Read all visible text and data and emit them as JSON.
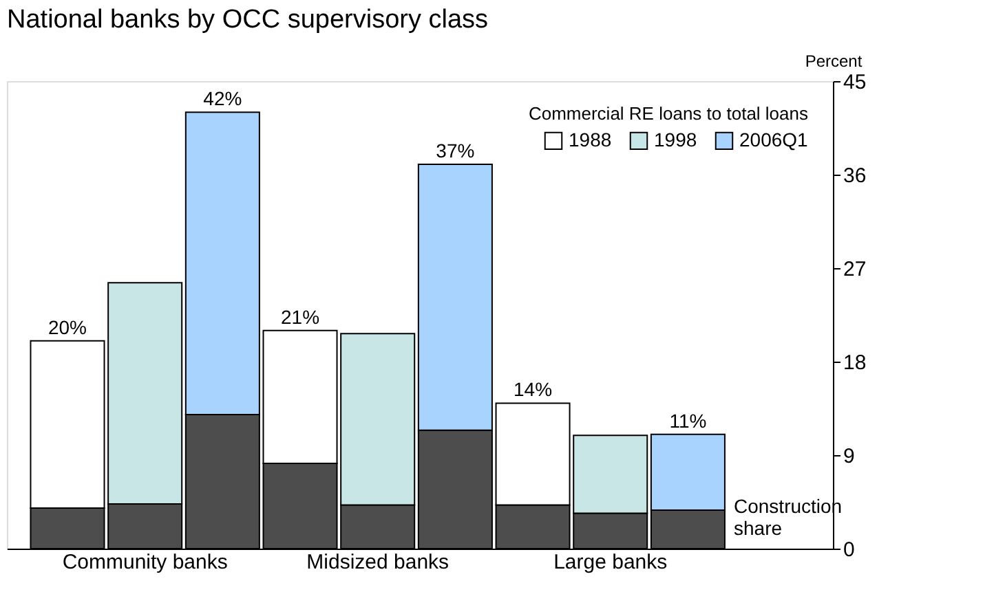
{
  "chart_data": {
    "type": "bar",
    "title": "National banks by OCC supervisory class",
    "ylabel": "Percent",
    "legend_title": "Commercial RE loans to total loans",
    "categories": [
      null,
      "Community banks",
      null,
      null,
      "Midsized banks",
      null,
      null,
      "Large banks",
      null
    ],
    "stacked": true,
    "ylim": [
      0,
      45
    ],
    "yticks": [
      0,
      9,
      18,
      27,
      36,
      45
    ],
    "grid": false,
    "legend": "top right",
    "series": [
      {
        "color": "#4d4d4d",
        "values": [
          3.9,
          4.3,
          12.9,
          8.2,
          4.2,
          11.4,
          4.2,
          3.4,
          3.7
        ]
      },
      {
        "name": "1988",
        "color": "#ffffff",
        "values": [
          16.1,
          null,
          null,
          12.8,
          null,
          null,
          9.8,
          null,
          null
        ]
      },
      {
        "name": "1998",
        "color": "#c9e6e6",
        "values": [
          null,
          21.3,
          null,
          null,
          16.5,
          null,
          null,
          7.5,
          null
        ]
      },
      {
        "name": "2006Q1",
        "color": "#a9d3ff",
        "values": [
          null,
          null,
          29.1,
          null,
          null,
          25.6,
          null,
          null,
          7.3
        ]
      }
    ],
    "totals": [
      "20%",
      null,
      "42%",
      "21%",
      null,
      "37%",
      "14%",
      null,
      "11%"
    ],
    "annotations": [
      "Construction share"
    ]
  }
}
